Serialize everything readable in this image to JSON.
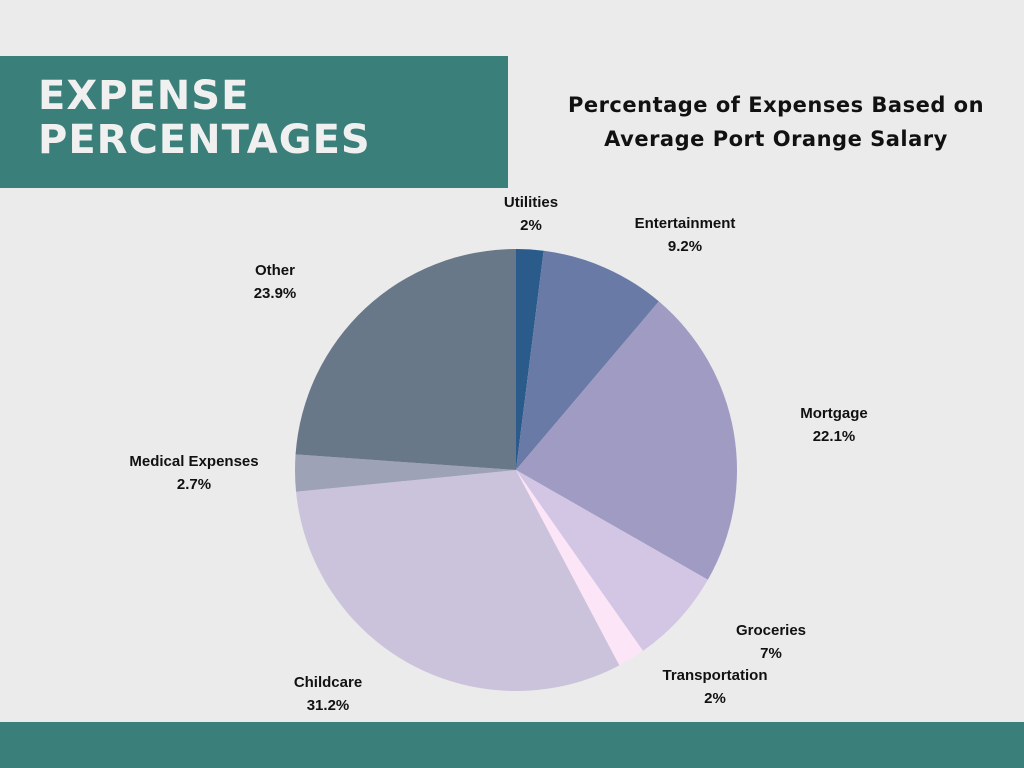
{
  "banner": {
    "line1": "EXPENSE",
    "line2": "PERCENTAGES",
    "color": "#3a7f79"
  },
  "chart_data": {
    "type": "pie",
    "title": "Percentage of Expenses Based on Average Port Orange Salary",
    "title_lines": [
      "Percentage of Expenses Based on",
      "Average Port Orange Salary"
    ],
    "unit": "%",
    "start_angle_deg": 0,
    "direction": "clockwise",
    "slices": [
      {
        "label": "Utilities",
        "value": 2,
        "value_text": "2%",
        "color": "#2b5b8a"
      },
      {
        "label": "Entertainment",
        "value": 9.2,
        "value_text": "9.2%",
        "color": "#6a7aa6"
      },
      {
        "label": "Mortgage",
        "value": 22.1,
        "value_text": "22.1%",
        "color": "#a09bc3"
      },
      {
        "label": "Groceries",
        "value": 7,
        "value_text": "7%",
        "color": "#d3c5e4"
      },
      {
        "label": "Transportation",
        "value": 2,
        "value_text": "2%",
        "color": "#fbe5f6"
      },
      {
        "label": "Childcare",
        "value": 31.2,
        "value_text": "31.2%",
        "color": "#cbc3db"
      },
      {
        "label": "Medical Expenses",
        "value": 2.7,
        "value_text": "2.7%",
        "color": "#9da2b6"
      },
      {
        "label": "Other",
        "value": 23.9,
        "value_text": "23.9%",
        "color": "#687889"
      }
    ]
  }
}
